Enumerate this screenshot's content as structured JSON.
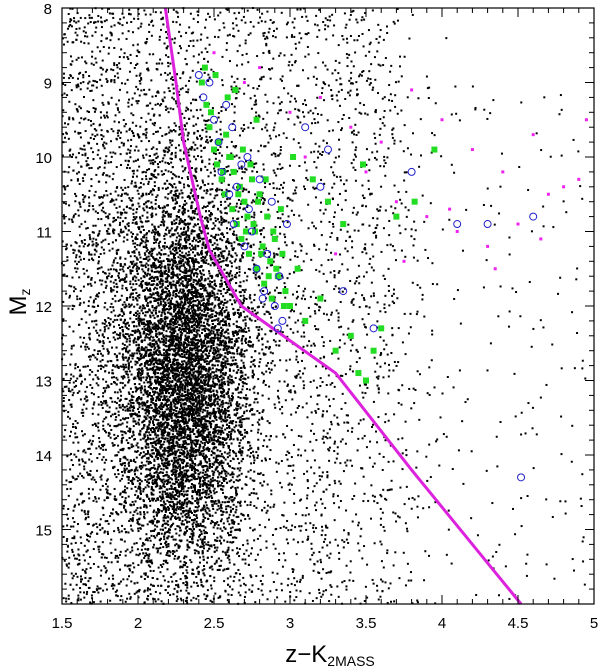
{
  "chart_data": {
    "type": "scatter",
    "title": "",
    "xlabel": "z−K",
    "xlabel_subscript": "2MASS",
    "ylabel": "M",
    "ylabel_subscript": "z",
    "xlim": [
      1.5,
      5.0
    ],
    "ylim": [
      16.0,
      8.0
    ],
    "y_inverted": true,
    "grid": false,
    "legend": "none",
    "x_ticks": [
      1.5,
      2.0,
      2.5,
      3.0,
      3.5,
      4.0,
      4.5,
      5.0
    ],
    "x_tick_labels": [
      "1.5",
      "2",
      "2.5",
      "3",
      "3.5",
      "4",
      "4.5",
      "5"
    ],
    "y_ticks": [
      8,
      9,
      10,
      11,
      12,
      13,
      14,
      15
    ],
    "y_tick_labels": [
      "8",
      "9",
      "10",
      "11",
      "12",
      "13",
      "14",
      "15"
    ],
    "colors": {
      "field": "#000000",
      "green_squares": "#22dd22",
      "blue_circles": "#2222cc",
      "magenta_dots": "#ee22ee",
      "boundary_line": "#dd22dd"
    },
    "boundary_line": {
      "x": [
        2.18,
        2.25,
        2.3,
        2.41,
        2.47,
        2.68,
        3.3,
        3.8,
        4.52
      ],
      "y": [
        8.0,
        9.0,
        9.8,
        10.8,
        11.25,
        12.0,
        12.9,
        14.2,
        16.0
      ]
    },
    "field_cloud": {
      "count": 9000,
      "center_x": 2.3,
      "center_y": 12.9,
      "spread_x": 0.22,
      "spread_y": 1.35,
      "broad_count": 4500
    },
    "green_squares": {
      "x": [
        2.42,
        2.45,
        2.47,
        2.5,
        2.52,
        2.55,
        2.57,
        2.58,
        2.6,
        2.62,
        2.63,
        2.65,
        2.67,
        2.68,
        2.7,
        2.72,
        2.73,
        2.75,
        2.77,
        2.78,
        2.8,
        2.82,
        2.83,
        2.85,
        2.87,
        2.88,
        2.9,
        2.92,
        2.95,
        2.97,
        3.0,
        3.05,
        3.1,
        3.2,
        3.3,
        3.4,
        3.45,
        3.5,
        3.55,
        3.6,
        2.48,
        2.53,
        2.56,
        2.61,
        2.66,
        2.71,
        2.76,
        2.81,
        2.86,
        2.91,
        2.96,
        2.44,
        2.59,
        2.69,
        2.74,
        2.79,
        2.84,
        2.89,
        2.94,
        3.02,
        3.15,
        3.25,
        3.35,
        3.48,
        3.7,
        3.82,
        3.95,
        2.51,
        2.64,
        2.78
      ],
      "y": [
        9.0,
        9.3,
        9.6,
        9.9,
        10.1,
        10.3,
        10.5,
        9.7,
        10.0,
        10.7,
        10.2,
        10.9,
        10.4,
        11.1,
        10.6,
        10.8,
        11.3,
        10.3,
        11.0,
        11.5,
        10.5,
        11.2,
        11.7,
        10.8,
        11.4,
        11.9,
        11.1,
        11.6,
        11.3,
        11.8,
        12.0,
        11.5,
        12.2,
        11.9,
        12.6,
        12.4,
        12.9,
        13.0,
        12.6,
        12.3,
        9.4,
        9.8,
        10.2,
        10.0,
        10.5,
        11.0,
        10.9,
        11.3,
        11.6,
        11.5,
        12.0,
        8.8,
        9.2,
        9.9,
        10.1,
        10.6,
        10.3,
        11.0,
        10.7,
        10.0,
        10.3,
        10.6,
        10.9,
        10.1,
        10.8,
        10.6,
        9.9,
        8.9,
        9.1,
        9.5
      ]
    },
    "blue_circles": {
      "x": [
        2.4,
        2.43,
        2.47,
        2.5,
        2.53,
        2.55,
        2.58,
        2.6,
        2.63,
        2.65,
        2.68,
        2.7,
        2.73,
        2.75,
        2.78,
        2.8,
        2.83,
        2.85,
        2.88,
        2.9,
        2.93,
        2.95,
        2.98,
        3.1,
        3.2,
        3.25,
        3.35,
        3.55,
        3.8,
        4.1,
        4.3,
        4.6,
        4.52,
        2.62,
        2.72,
        2.82,
        2.92
      ],
      "y": [
        8.9,
        9.2,
        9.0,
        9.5,
        9.8,
        10.2,
        9.3,
        10.5,
        10.9,
        10.4,
        10.1,
        11.2,
        10.7,
        11.0,
        11.5,
        10.3,
        11.8,
        11.3,
        10.6,
        12.0,
        11.6,
        12.2,
        10.9,
        9.6,
        10.4,
        9.9,
        11.8,
        12.3,
        10.2,
        10.9,
        10.9,
        10.8,
        14.3,
        9.6,
        10.0,
        11.9,
        12.3
      ]
    },
    "magenta_dots": {
      "x": [
        2.5,
        2.8,
        3.0,
        3.2,
        3.4,
        3.6,
        3.8,
        4.0,
        4.2,
        4.4,
        4.6,
        4.8,
        4.95,
        3.7,
        3.9,
        4.1,
        4.3,
        4.5,
        4.7,
        4.9,
        2.7,
        3.1,
        3.5,
        3.3,
        3.75,
        4.05,
        4.35,
        4.65
      ],
      "y": [
        8.6,
        8.8,
        9.4,
        9.2,
        9.6,
        9.8,
        9.1,
        9.5,
        9.9,
        10.2,
        9.7,
        10.4,
        9.5,
        10.6,
        10.8,
        11.0,
        11.2,
        10.9,
        10.5,
        10.3,
        9.0,
        10.0,
        10.2,
        11.3,
        11.4,
        10.7,
        11.5,
        11.1
      ]
    }
  }
}
